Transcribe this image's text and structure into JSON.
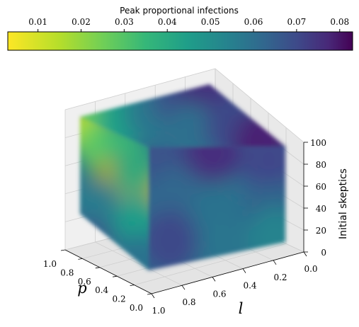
{
  "chart_data": {
    "type": "heatmap",
    "subtype": "3d-volume",
    "colormap": "viridis (reversed)",
    "colorbar": {
      "title": "Peak proportional infections",
      "range": [
        0.003,
        0.083
      ],
      "ticks": [
        "0.01",
        "0.02",
        "0.03",
        "0.04",
        "0.05",
        "0.06",
        "0.07",
        "0.08"
      ],
      "placement": "top"
    },
    "axes": {
      "p": {
        "label": "p",
        "range": [
          0.0,
          1.0
        ],
        "ticks": [
          "0.0",
          "0.2",
          "0.4",
          "0.6",
          "0.8",
          "1.0"
        ]
      },
      "l": {
        "label": "l",
        "range": [
          0.0,
          1.0
        ],
        "ticks": [
          "1.0",
          "0.8",
          "0.6",
          "0.4",
          "0.2",
          "0.0"
        ]
      },
      "z": {
        "label": "Initial skeptics",
        "range": [
          0,
          100
        ],
        "ticks": [
          "0",
          "20",
          "40",
          "60",
          "80",
          "100"
        ]
      }
    },
    "grid": true,
    "faces": {
      "left": {
        "colors": [
          "#b7de2a",
          "#5ec962",
          "#3aba76",
          "#b1a31a",
          "#bfa210",
          "#34a87a",
          "#2f6f8e",
          "#297b8e",
          "#2a788e",
          "#1f9e89",
          "#2c728e",
          "#3b528b"
        ]
      },
      "top": {
        "colors": [
          "#6ccd5a",
          "#1fa187",
          "#2a788e",
          "#3b528b",
          "#45327e",
          "#2d708e",
          "#3e4989",
          "#482173"
        ]
      },
      "right": {
        "colors": [
          "#3b528b",
          "#462f7e",
          "#40478a",
          "#31688e",
          "#2c728e",
          "#33638d",
          "#3e4a89",
          "#2b748e",
          "#25838e"
        ]
      }
    }
  }
}
